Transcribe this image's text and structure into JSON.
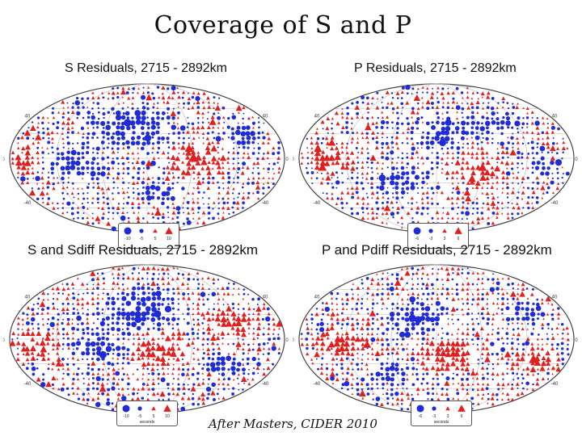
{
  "title": "Coverage of S and P",
  "credit": "After Masters, CIDER 2010",
  "colors": {
    "negative": "#1f2bd6",
    "positive": "#e0201e",
    "grid": "#b8b8b8",
    "outline": "#444444"
  },
  "symbol_legend": {
    "negative_shape": "circle",
    "positive_shape": "triangle"
  },
  "panels": [
    {
      "id": "s",
      "title": "S Residuals, 2715 - 2892km",
      "lat_labels": [
        "40",
        "0",
        "-40",
        "-80"
      ],
      "legend": {
        "values": [
          "-10",
          "-5",
          "5",
          "10"
        ],
        "units": ""
      }
    },
    {
      "id": "p",
      "title": "P Residuals, 2715 - 2892km",
      "lat_labels": [
        "40",
        "0",
        "-40",
        "-80"
      ],
      "legend": {
        "values": [
          "-6",
          "-3",
          "3",
          "6"
        ],
        "units": ""
      }
    },
    {
      "id": "sdiff",
      "title": "S and Sdiff Residuals, 2715 - 2892km",
      "lat_labels": [
        "40",
        "0",
        "-40",
        "-80"
      ],
      "legend": {
        "values": [
          "-10",
          "-5",
          "5",
          "10"
        ],
        "units": "seconds"
      }
    },
    {
      "id": "pdiff",
      "title": "P and Pdiff Residuals, 2715 - 2892km",
      "lat_labels": [
        "40",
        "0",
        "-40",
        "-80"
      ],
      "legend": {
        "values": [
          "-6",
          "-3",
          "3",
          "6"
        ],
        "units": "seconds"
      }
    }
  ]
}
